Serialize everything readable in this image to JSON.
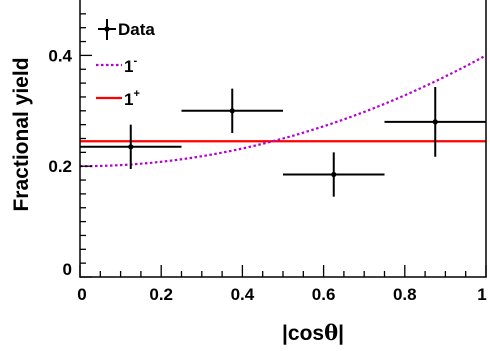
{
  "chart_data": {
    "type": "scatter",
    "xlabel_pre": "|cos",
    "xlabel_theta": "θ",
    "xlabel_post": "|",
    "ylabel": "Fractional yield",
    "xlim": [
      0,
      1
    ],
    "ylim": [
      0,
      0.5
    ],
    "x_ticks": [
      "0",
      "0.2",
      "0.4",
      "0.6",
      "0.8",
      "1"
    ],
    "x_tick_values": [
      0,
      0.2,
      0.4,
      0.6,
      0.8,
      1
    ],
    "y_ticks": [
      "0",
      "0.2",
      "0.4"
    ],
    "y_tick_values": [
      0,
      0.2,
      0.4
    ],
    "legend_position": "top-left",
    "series": [
      {
        "name": "Data",
        "kind": "points",
        "color": "#000000",
        "points": [
          {
            "x": 0.125,
            "y": 0.235,
            "xerr": 0.125,
            "yerr": 0.04
          },
          {
            "x": 0.375,
            "y": 0.3,
            "xerr": 0.125,
            "yerr": 0.04
          },
          {
            "x": 0.625,
            "y": 0.185,
            "xerr": 0.125,
            "yerr": 0.04
          },
          {
            "x": 0.875,
            "y": 0.28,
            "xerr": 0.125,
            "yerr": 0.063
          }
        ]
      },
      {
        "name_base": "1",
        "name_sup": "-",
        "kind": "curve",
        "color": "#b400d2",
        "dashed": true,
        "formula": "0.2 + 0.2 x^2",
        "a": 0.2,
        "b": 0.2
      },
      {
        "name_base": "1",
        "name_sup": "+",
        "kind": "flat",
        "color": "#ff0000",
        "dashed": false,
        "value": 0.245
      }
    ]
  }
}
